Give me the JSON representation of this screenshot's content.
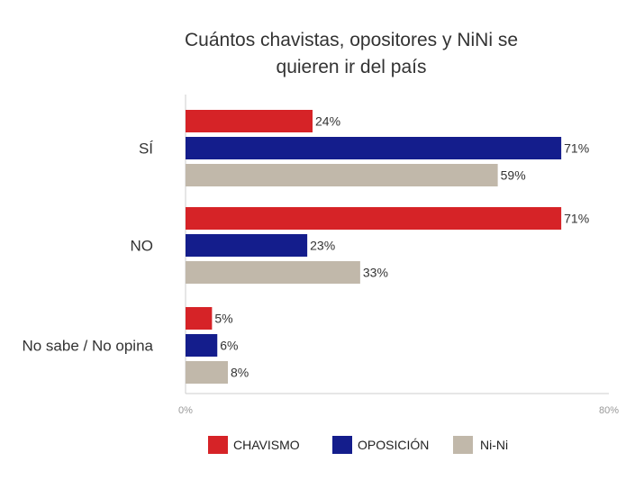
{
  "chart_data": {
    "type": "bar",
    "orientation": "horizontal",
    "title": "Cuántos chavistas, opositores y NiNi se quieren ir del país",
    "categories": [
      "SÍ",
      "NO",
      "No sabe / No opina"
    ],
    "series": [
      {
        "name": "CHAVISMO",
        "color": "#d62327",
        "values": [
          24,
          71,
          5
        ]
      },
      {
        "name": "OPOSICIÓN",
        "color": "#141d8c",
        "values": [
          71,
          23,
          6
        ]
      },
      {
        "name": "Ni-Ni",
        "color": "#c1b8aa",
        "values": [
          59,
          33,
          8
        ]
      }
    ],
    "xlim": [
      0,
      80
    ],
    "x_tick_labels": [
      "0%",
      "80%"
    ],
    "value_suffix": "%",
    "legend_position": "bottom",
    "grid": false
  }
}
